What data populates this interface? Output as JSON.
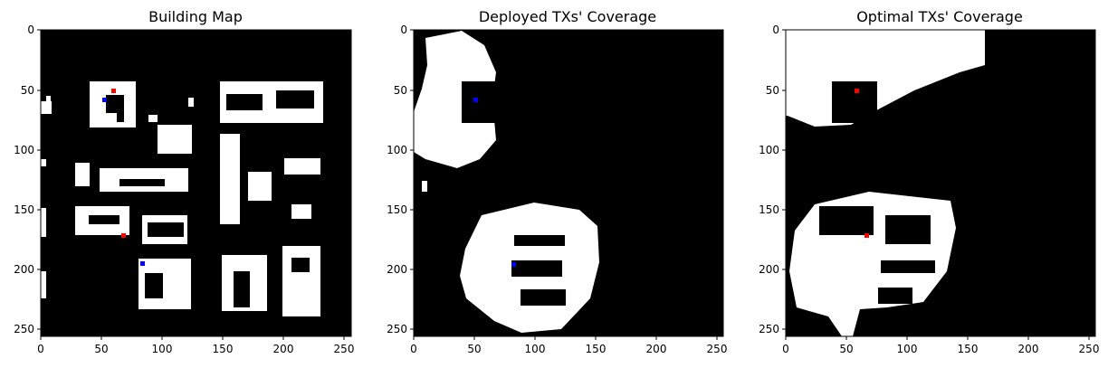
{
  "figure": {
    "panels": [
      {
        "title": "Building Map",
        "xticks": [
          "0",
          "50",
          "100",
          "150",
          "200",
          "250"
        ],
        "yticks": [
          "0",
          "50",
          "100",
          "150",
          "200",
          "250"
        ]
      },
      {
        "title": "Deployed TXs' Coverage",
        "xticks": [
          "0",
          "50",
          "100",
          "150",
          "200",
          "250"
        ],
        "yticks": [
          "0",
          "50",
          "100",
          "150",
          "200",
          "250"
        ]
      },
      {
        "title": "Optimal TXs' Coverage",
        "xticks": [
          "0",
          "50",
          "100",
          "150",
          "200",
          "250"
        ],
        "yticks": [
          "0",
          "50",
          "100",
          "150",
          "200",
          "250"
        ]
      }
    ]
  },
  "colors": {
    "background": "#000000",
    "foreground": "#ffffff",
    "red_marker": "#ff0000",
    "blue_marker": "#0000ff"
  },
  "markers": {
    "building_map": [
      {
        "color": "red",
        "x": 59,
        "y": 51
      },
      {
        "color": "blue",
        "x": 51,
        "y": 58
      },
      {
        "color": "red",
        "x": 67,
        "y": 171
      },
      {
        "color": "blue",
        "x": 82,
        "y": 195
      }
    ],
    "deployed": [
      {
        "color": "blue",
        "x": 51,
        "y": 58
      },
      {
        "color": "blue",
        "x": 82,
        "y": 195
      }
    ],
    "optimal": [
      {
        "color": "red",
        "x": 59,
        "y": 51
      },
      {
        "color": "red",
        "x": 67,
        "y": 171
      }
    ]
  }
}
